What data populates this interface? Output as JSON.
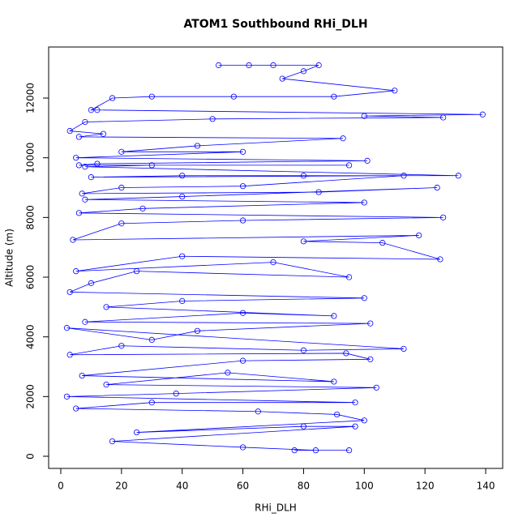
{
  "chart_data": {
    "type": "line",
    "title": "ATOM1 Southbound RHi_DLH",
    "x_label": "RHi_DLH",
    "y_label": "Altitude (m)",
    "x": [
      52,
      62,
      70,
      85,
      80,
      73,
      110,
      90,
      57,
      30,
      17,
      10,
      12,
      139,
      100,
      126,
      50,
      8,
      3,
      14,
      6,
      93,
      45,
      20,
      60,
      5,
      101,
      12,
      6,
      95,
      30,
      8,
      131,
      80,
      40,
      10,
      113,
      60,
      20,
      7,
      85,
      124,
      40,
      8,
      100,
      27,
      6,
      126,
      60,
      20,
      4,
      118,
      80,
      106,
      125,
      40,
      5,
      70,
      95,
      25,
      10,
      3,
      100,
      40,
      15,
      90,
      60,
      8,
      102,
      45,
      30,
      2,
      113,
      80,
      20,
      3,
      94,
      102,
      60,
      7,
      90,
      55,
      15,
      104,
      38,
      2,
      97,
      30,
      5,
      65,
      91,
      100,
      25,
      80,
      97,
      17,
      60,
      84,
      77,
      95
    ],
    "series": [
      {
        "name": "RHi_DLH",
        "color": "#0000ff",
        "values": [
          13100,
          13100,
          13100,
          13100,
          12900,
          12650,
          12250,
          12050,
          12050,
          12050,
          12000,
          11600,
          11600,
          11450,
          11400,
          11350,
          11300,
          11200,
          10900,
          10800,
          10700,
          10650,
          10400,
          10200,
          10200,
          10000,
          9900,
          9800,
          9750,
          9750,
          9750,
          9700,
          9400,
          9400,
          9400,
          9350,
          9400,
          9050,
          9000,
          8800,
          8850,
          9000,
          8700,
          8600,
          8500,
          8300,
          8150,
          8000,
          7900,
          7800,
          7250,
          7400,
          7200,
          7150,
          6600,
          6700,
          6200,
          6500,
          6000,
          6200,
          5800,
          5500,
          5300,
          5200,
          5000,
          4700,
          4800,
          4500,
          4450,
          4200,
          3900,
          4300,
          3600,
          3550,
          3700,
          3400,
          3450,
          3250,
          3200,
          2700,
          2500,
          2800,
          2400,
          2300,
          2100,
          2000,
          1800,
          1800,
          1600,
          1500,
          1400,
          1200,
          800,
          1000,
          1000,
          500,
          300,
          200,
          200,
          200
        ]
      }
    ],
    "xlim": [
      -4,
      145.6
    ],
    "ylim": [
      -407,
      13711
    ],
    "xticks": [
      0,
      20,
      40,
      60,
      80,
      100,
      120,
      140
    ],
    "yticks": [
      0,
      2000,
      4000,
      6000,
      8000,
      10000,
      12000
    ],
    "grid": false
  }
}
